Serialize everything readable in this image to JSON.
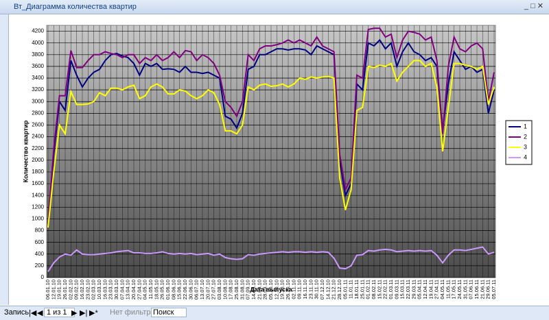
{
  "window": {
    "title": "Вт_Диаграмма количества квартир"
  },
  "chart_data": {
    "type": "line",
    "x_label": "Дата выпуска",
    "y_label": "Количество квартир",
    "categories": [
      "06.01.10",
      "12.01.10",
      "19.01.10",
      "26.01.10",
      "02.02.10",
      "09.02.10",
      "16.02.10",
      "23.02.10",
      "02.03.10",
      "10.03.10",
      "16.03.10",
      "23.03.10",
      "30.03.10",
      "07.04.10",
      "13.04.10",
      "20.04.10",
      "27.04.10",
      "04.05.10",
      "11.05.10",
      "18.05.10",
      "26.05.10",
      "01.06.10",
      "08.06.10",
      "15.06.10",
      "22.06.10",
      "30.06.10",
      "06.07.10",
      "13.07.10",
      "20.07.10",
      "27.07.10",
      "03.08.10",
      "10.08.10",
      "17.08.10",
      "25.08.10",
      "31.08.10",
      "07.09.10",
      "14.09.10",
      "21.09.10",
      "28.09.10",
      "05.10.10",
      "12.10.10",
      "19.10.10",
      "26.10.10",
      "02.11.10",
      "09.11.10",
      "16.11.10",
      "23.11.10",
      "30.11.10",
      "07.12.10",
      "14.12.10",
      "21.12.10",
      "28.12.10",
      "05.01.11",
      "11.01.11",
      "18.01.11",
      "25.01.11",
      "01.02.11",
      "08.02.11",
      "15.02.11",
      "22.02.11",
      "01.03.11",
      "09.03.11",
      "15.03.11",
      "22.03.11",
      "29.03.11",
      "05.04.11",
      "12.04.11",
      "19.04.11",
      "27.04.11",
      "04.05.11",
      "11.05.11",
      "17.05.11",
      "24.05.11",
      "31.05.11",
      "07.06.11",
      "15.06.11",
      "21.06.11",
      "29.06.11",
      "05.07.11"
    ],
    "series": [
      {
        "name": "1",
        "color": "#000080",
        "values": [
          900,
          2100,
          3000,
          2850,
          3700,
          3450,
          3250,
          3400,
          3500,
          3550,
          3700,
          3800,
          3820,
          3780,
          3750,
          3650,
          3450,
          3650,
          3600,
          3650,
          3550,
          3560,
          3550,
          3500,
          3600,
          3500,
          3500,
          3480,
          3500,
          3450,
          3400,
          2750,
          2700,
          2550,
          2800,
          3550,
          3600,
          3800,
          3800,
          3850,
          3900,
          3900,
          3880,
          3900,
          3900,
          3880,
          3800,
          3950,
          3900,
          3850,
          3800,
          2000,
          1400,
          1600,
          3300,
          3200,
          4000,
          3950,
          4050,
          3900,
          4000,
          3600,
          3850,
          4000,
          3850,
          3800,
          3700,
          3750,
          3600,
          2500,
          3300,
          3850,
          3700,
          3550,
          3600,
          3500,
          3550,
          2800,
          3200
        ]
      },
      {
        "name": "2",
        "color": "#800080",
        "values": [
          900,
          2200,
          3100,
          3100,
          3870,
          3580,
          3580,
          3700,
          3800,
          3800,
          3850,
          3820,
          3800,
          3750,
          3800,
          3800,
          3650,
          3750,
          3700,
          3800,
          3700,
          3750,
          3850,
          3750,
          3870,
          3850,
          3700,
          3800,
          3750,
          3650,
          3450,
          3000,
          2900,
          2750,
          3000,
          3800,
          3700,
          3900,
          3950,
          3950,
          3970,
          4000,
          4050,
          4000,
          4050,
          4000,
          3950,
          4100,
          3950,
          3900,
          3850,
          2100,
          1500,
          1700,
          3450,
          3400,
          4230,
          4250,
          4250,
          4100,
          4150,
          3750,
          4050,
          4200,
          4180,
          4150,
          4050,
          4100,
          3700,
          2450,
          3600,
          4100,
          3900,
          3850,
          3950,
          4000,
          3900,
          3000,
          3500
        ]
      },
      {
        "name": "3",
        "color": "#ffff00",
        "values": [
          850,
          1800,
          2600,
          2450,
          3170,
          2950,
          2950,
          2960,
          3000,
          3150,
          3100,
          3230,
          3230,
          3200,
          3250,
          3280,
          3050,
          3100,
          3250,
          3300,
          3250,
          3130,
          3130,
          3200,
          3180,
          3100,
          3050,
          3100,
          3200,
          3150,
          2950,
          2500,
          2500,
          2450,
          2600,
          3250,
          3200,
          3280,
          3300,
          3260,
          3270,
          3300,
          3250,
          3300,
          3400,
          3380,
          3420,
          3400,
          3420,
          3430,
          3400,
          1700,
          1150,
          1500,
          2850,
          2900,
          3600,
          3580,
          3620,
          3600,
          3650,
          3350,
          3500,
          3600,
          3700,
          3700,
          3600,
          3650,
          3250,
          2150,
          2900,
          3650,
          3650,
          3620,
          3600,
          3550,
          3600,
          2950,
          3250
        ]
      },
      {
        "name": "4",
        "color": "#cc99ff",
        "values": [
          100,
          250,
          350,
          400,
          380,
          470,
          400,
          390,
          390,
          400,
          410,
          420,
          440,
          450,
          460,
          420,
          420,
          410,
          410,
          420,
          440,
          410,
          400,
          410,
          400,
          410,
          390,
          400,
          410,
          380,
          400,
          340,
          320,
          310,
          320,
          390,
          380,
          400,
          410,
          420,
          430,
          440,
          430,
          440,
          440,
          430,
          440,
          430,
          440,
          430,
          330,
          160,
          150,
          200,
          380,
          390,
          460,
          450,
          470,
          480,
          470,
          440,
          450,
          460,
          450,
          460,
          450,
          460,
          380,
          250,
          380,
          470,
          470,
          460,
          480,
          500,
          520,
          400,
          430
        ]
      }
    ],
    "ylim": [
      0,
      4300
    ],
    "yticks": [
      0,
      200,
      400,
      600,
      800,
      1000,
      1200,
      1400,
      1600,
      1800,
      2000,
      2200,
      2400,
      2600,
      2800,
      3000,
      3200,
      3400,
      3600,
      3800,
      4000,
      4200
    ],
    "grid": true,
    "legend_position": "right"
  },
  "status_bar": {
    "record_label": "Запись:",
    "record_position": "1 из 1",
    "filter": "Нет фильтра",
    "search": "Поиск"
  }
}
